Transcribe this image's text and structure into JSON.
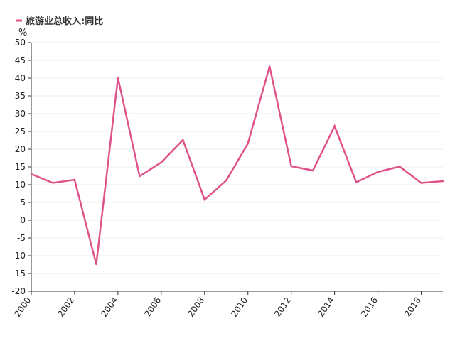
{
  "colors": {
    "line": "#e0528a",
    "axis": "#333333",
    "grid": "#eeeeee"
  },
  "chart_data": {
    "type": "line",
    "unit": "%",
    "legend": {
      "position": "top-left"
    },
    "grid": true,
    "ylim": [
      -20,
      50
    ],
    "yticks": [
      "-20",
      "-15",
      "-10",
      "-5",
      "0",
      "5",
      "10",
      "15",
      "20",
      "25",
      "30",
      "35",
      "40",
      "45",
      "50"
    ],
    "x": [
      2000,
      2001,
      2002,
      2003,
      2004,
      2005,
      2006,
      2007,
      2008,
      2009,
      2010,
      2011,
      2012,
      2013,
      2014,
      2015,
      2016,
      2017,
      2018,
      2019
    ],
    "xticks": [
      "2000",
      "2002",
      "2004",
      "2006",
      "2008",
      "2010",
      "2012",
      "2014",
      "2016",
      "2018"
    ],
    "series": [
      {
        "name": "旅游业总收入:同比",
        "values": [
          13.0,
          10.5,
          11.4,
          -12.4,
          40.1,
          12.4,
          16.3,
          22.6,
          5.8,
          11.2,
          21.6,
          43.3,
          15.2,
          14.0,
          26.5,
          10.7,
          13.6,
          15.1,
          10.5,
          11.0
        ]
      }
    ]
  }
}
